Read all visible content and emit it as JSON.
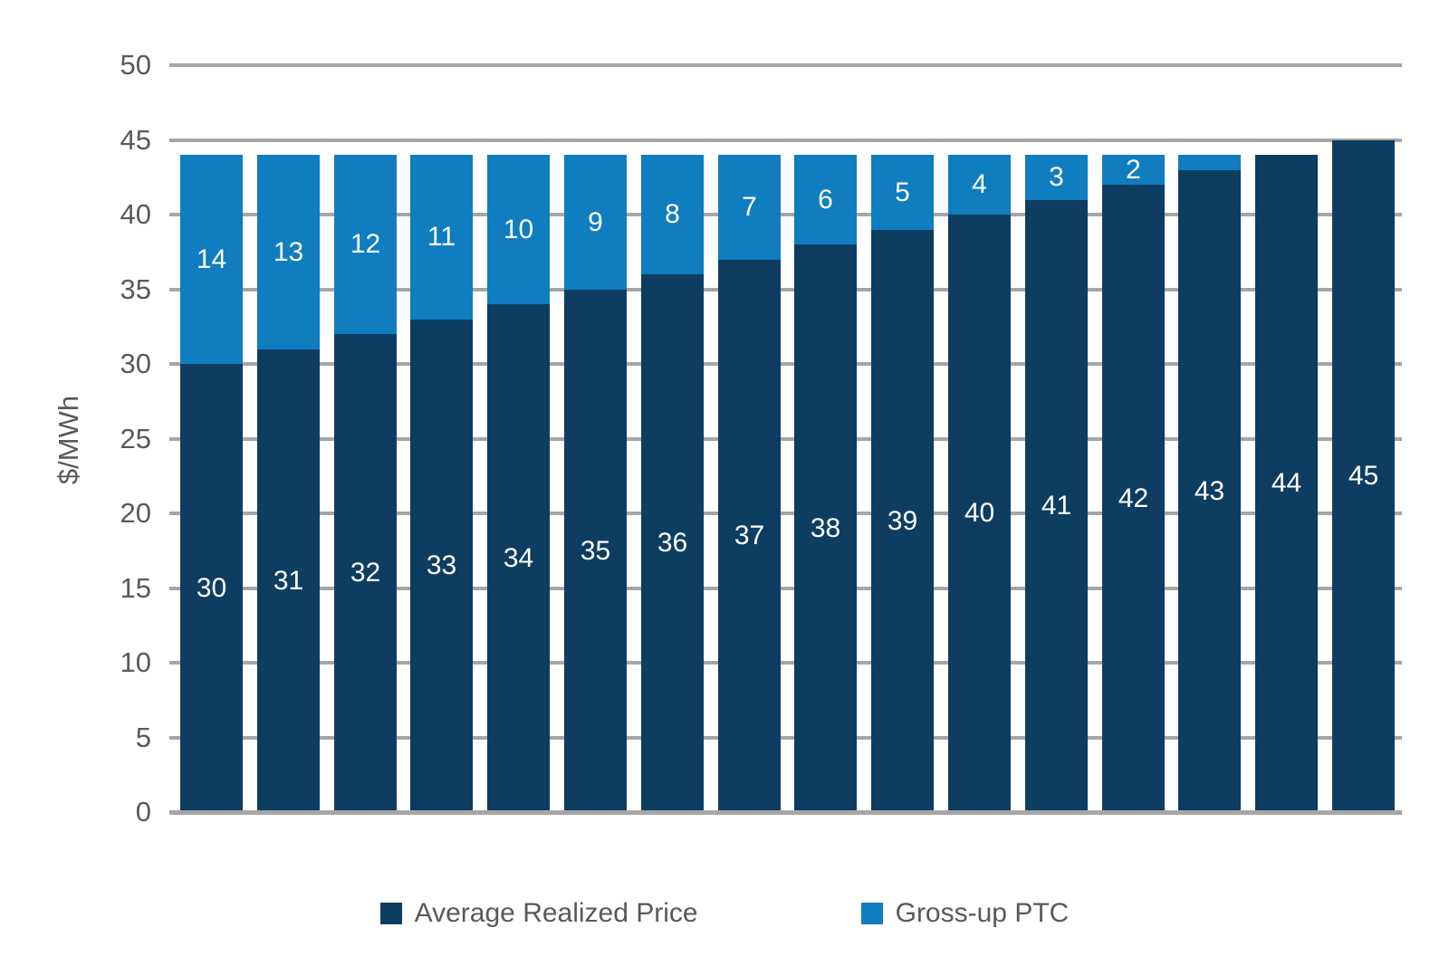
{
  "chart_data": {
    "type": "bar",
    "stacked": true,
    "title": "",
    "xlabel": "",
    "ylabel": "$/MWh",
    "ylim": [
      0,
      50
    ],
    "yticks": [
      0,
      5,
      10,
      15,
      20,
      25,
      30,
      35,
      40,
      45,
      50
    ],
    "grid": true,
    "legend_position": "bottom",
    "categories": [
      "",
      "",
      "",
      "",
      "",
      "",
      "",
      "",
      "",
      "",
      "",
      "",
      "",
      "",
      "",
      ""
    ],
    "series": [
      {
        "name": "Average Realized Price",
        "color": "#0E3D62",
        "values": [
          30,
          31,
          32,
          33,
          34,
          35,
          36,
          37,
          38,
          39,
          40,
          41,
          42,
          43,
          44,
          45
        ],
        "data_labels": [
          "30",
          "31",
          "32",
          "33",
          "34",
          "35",
          "36",
          "37",
          "38",
          "39",
          "40",
          "41",
          "42",
          "43",
          "44",
          "45"
        ]
      },
      {
        "name": "Gross-up PTC",
        "color": "#0F7DBF",
        "values": [
          14,
          13,
          12,
          11,
          10,
          9,
          8,
          7,
          6,
          5,
          4,
          3,
          2,
          1,
          0,
          0
        ],
        "data_labels": [
          "14",
          "13",
          "12",
          "11",
          "10",
          "9",
          "8",
          "7",
          "6",
          "5",
          "4",
          "3",
          "2",
          "",
          "",
          ""
        ]
      }
    ],
    "colors": {
      "gridline": "#A6A6A6",
      "axis_line": "#A6A6A6",
      "tick_label": "#595959",
      "axis_title": "#595959",
      "legend_text": "#595959",
      "data_label": "#FFFFFF"
    }
  }
}
